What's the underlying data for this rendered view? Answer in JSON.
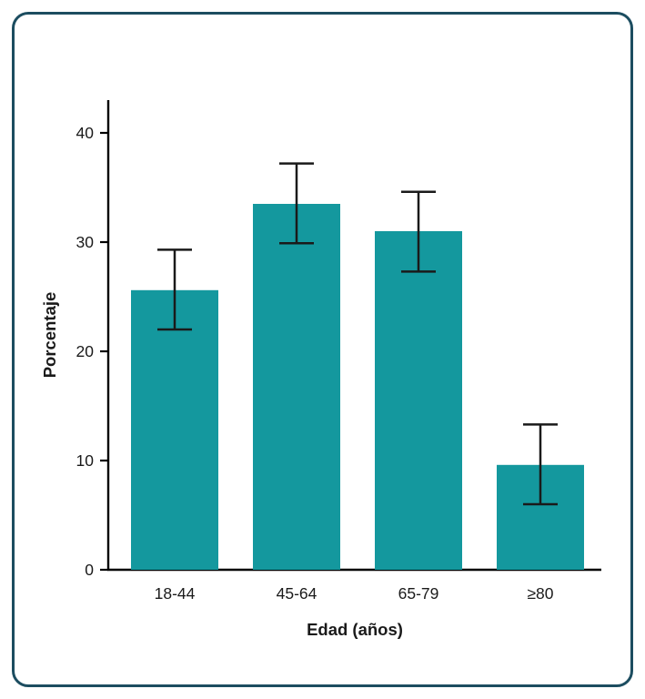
{
  "frame": {
    "border_color": "#1C4D60",
    "background": "#FFFFFF",
    "border_width": 3
  },
  "chart_data": {
    "type": "bar",
    "title": "",
    "categories": [
      "18-44",
      "45-64",
      "65-79",
      "≥80"
    ],
    "values": [
      25.6,
      33.5,
      31.0,
      9.6
    ],
    "error_upper": [
      29.3,
      37.2,
      34.6,
      13.3
    ],
    "error_lower": [
      22.0,
      29.9,
      27.3,
      6.0
    ],
    "xlabel": "Edad (años)",
    "ylabel": "Porcentaje",
    "ylim": [
      0,
      43
    ],
    "yticks": [
      0,
      10,
      20,
      30,
      40
    ],
    "grid": false,
    "legend": "none",
    "bar_color": "#14989E",
    "axis_color": "#000000",
    "error_bar_color": "#1A1A1A",
    "tick_label_color": "#1A1A1A"
  }
}
